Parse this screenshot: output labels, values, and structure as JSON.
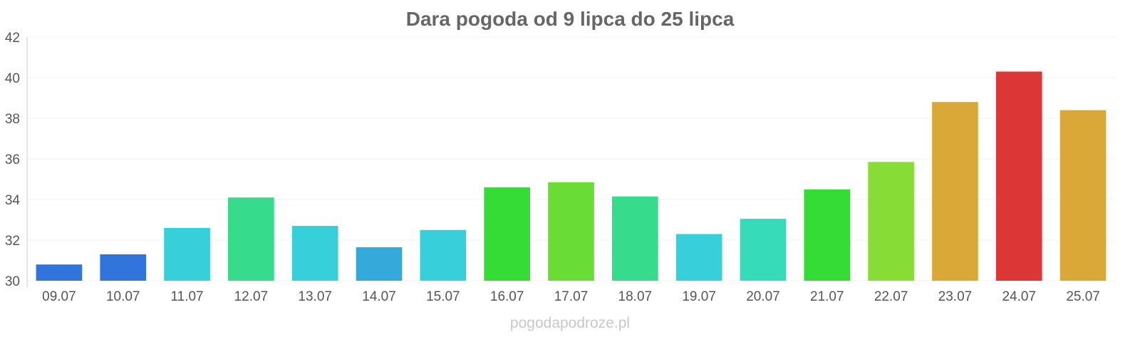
{
  "chart_data": {
    "type": "bar",
    "title": "Dara pogoda od 9 lipca do 25 lipca",
    "xlabel": "",
    "ylabel": "",
    "ylim": [
      30,
      42
    ],
    "yticks": [
      30,
      32,
      34,
      36,
      38,
      40,
      42
    ],
    "grid": true,
    "categories": [
      "09.07",
      "10.07",
      "11.07",
      "12.07",
      "13.07",
      "14.07",
      "15.07",
      "16.07",
      "17.07",
      "18.07",
      "19.07",
      "20.07",
      "21.07",
      "22.07",
      "23.07",
      "24.07",
      "25.07"
    ],
    "values": [
      30.8,
      31.3,
      32.6,
      34.1,
      32.7,
      31.65,
      32.5,
      34.6,
      34.85,
      34.15,
      32.3,
      33.05,
      34.5,
      35.85,
      38.8,
      40.3,
      38.4
    ],
    "colors": [
      "#3174dc",
      "#3174dc",
      "#36cfda",
      "#36db8c",
      "#36cfda",
      "#35a9da",
      "#36cfda",
      "#36dc36",
      "#6adc36",
      "#36db8c",
      "#36cfda",
      "#36dbb9",
      "#36dc36",
      "#88dc36",
      "#daa836",
      "#dc3636",
      "#daa836"
    ]
  },
  "watermark": "pogodapodroze.pl"
}
